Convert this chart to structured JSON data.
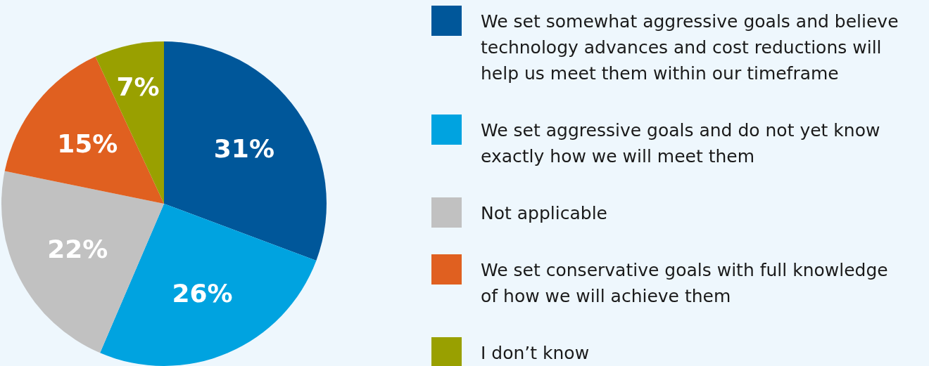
{
  "chart_data": {
    "type": "pie",
    "categories": [
      "We set somewhat aggressive goals and believe technology advances and cost reductions will help us meet them within our timeframe",
      "We set aggressive goals and do not yet know exactly how we will meet them",
      "Not applicable",
      "We set conservative goals with full knowledge of how we will achieve them",
      "I don’t know"
    ],
    "values": [
      31,
      26,
      22,
      15,
      7
    ],
    "colors": [
      "#00579a",
      "#00a3e0",
      "#c1c1c1",
      "#e06020",
      "#99a000"
    ],
    "value_labels": [
      "31%",
      "26%",
      "22%",
      "15%",
      "7%"
    ],
    "legend": "right"
  }
}
